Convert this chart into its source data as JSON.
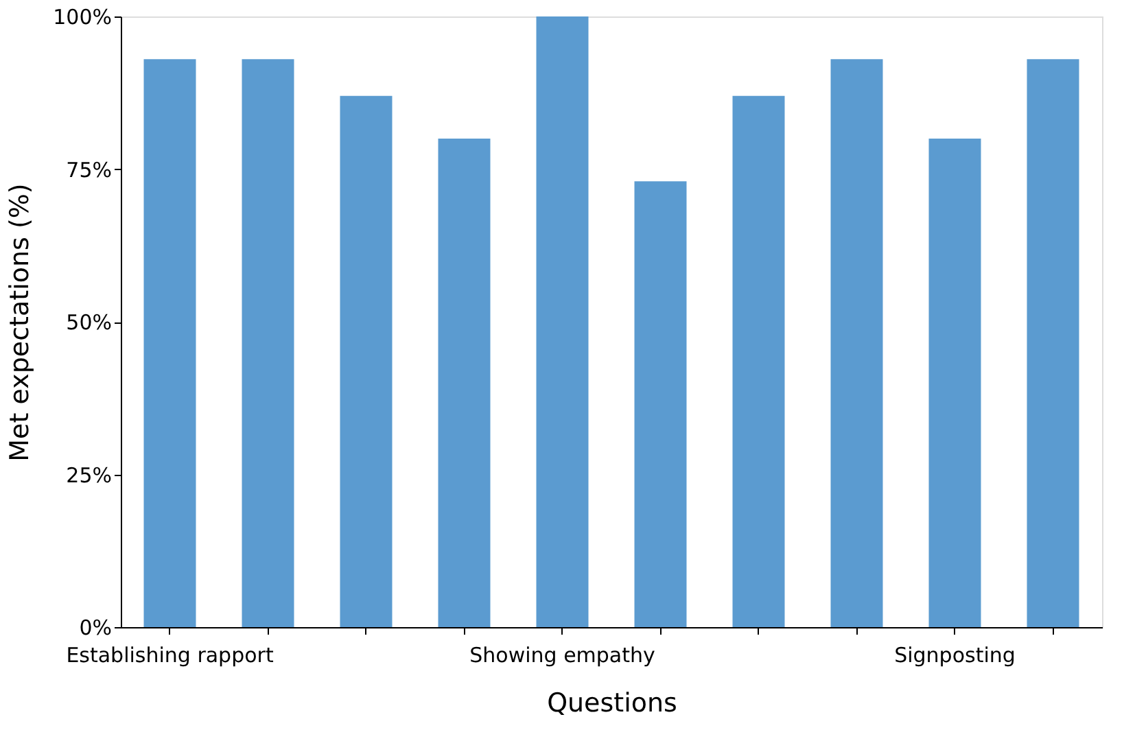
{
  "chart_data": {
    "type": "bar",
    "xlabel": "Questions",
    "ylabel": "Met expectations (%)",
    "categories": [
      "Establishing rapport",
      null,
      null,
      null,
      "Showing empathy",
      null,
      null,
      null,
      "Signposting",
      null
    ],
    "values": [
      93,
      93,
      87,
      80,
      100,
      73,
      87,
      93,
      80,
      93
    ],
    "color": "#5b9bd0",
    "ylim": [
      0,
      100
    ],
    "yticks": [
      {
        "value": 0,
        "label": "0%"
      },
      {
        "value": 25,
        "label": "25%"
      },
      {
        "value": 50,
        "label": "50%"
      },
      {
        "value": 75,
        "label": "75%"
      },
      {
        "value": 100,
        "label": "100%"
      }
    ],
    "grid": false
  }
}
